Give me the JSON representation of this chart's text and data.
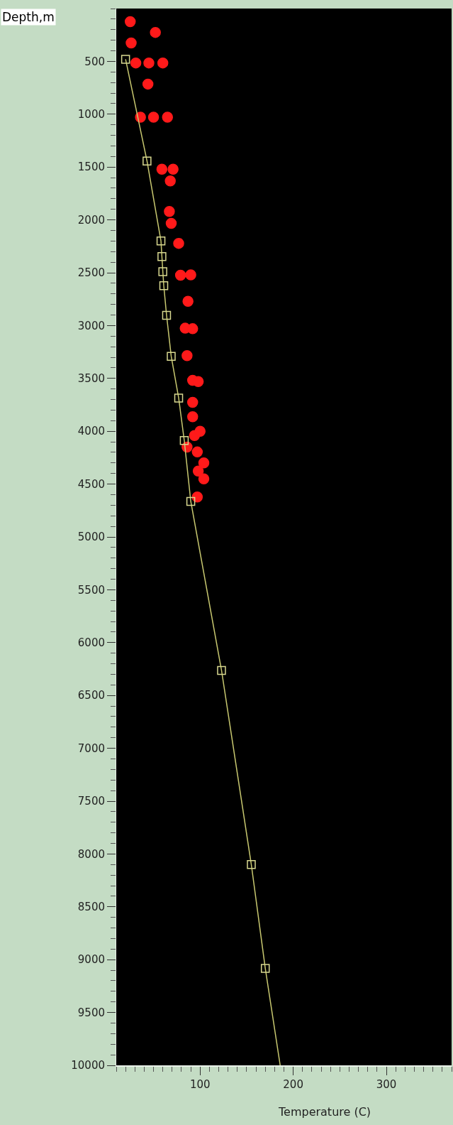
{
  "chart_data": {
    "type": "scatter",
    "xlabel": "Temperature (C)",
    "ylabel": "Depth,m",
    "xlim": [
      10,
      370
    ],
    "xticks": [
      100,
      200,
      300
    ],
    "ylim": [
      10000,
      0
    ],
    "yticks": [
      500,
      1000,
      1500,
      2000,
      2500,
      3000,
      3500,
      4000,
      4500,
      5000,
      5500,
      6000,
      6500,
      7000,
      7500,
      8000,
      8500,
      9000,
      9500,
      10000
    ],
    "grid": false,
    "series": [
      {
        "marker": "circle",
        "color": "#ff1a1a",
        "x": [
          25,
          52,
          26,
          31,
          45,
          60,
          44,
          36,
          50,
          65,
          59,
          71,
          68,
          67,
          69,
          77,
          79,
          90,
          87,
          84,
          92,
          86,
          92,
          98,
          92,
          92,
          94,
          100,
          97,
          86,
          98,
          104,
          104,
          97
        ],
        "values": [
          125,
          226,
          326,
          515,
          515,
          515,
          715,
          1028,
          1028,
          1028,
          1520,
          1520,
          1631,
          1920,
          2033,
          2222,
          2523,
          2520,
          2770,
          3025,
          3030,
          3284,
          3518,
          3530,
          3727,
          3862,
          4041,
          4000,
          4196,
          4150,
          4376,
          4300,
          4450,
          4622
        ]
      },
      {
        "type": "line",
        "marker": "none",
        "line_style": "solid",
        "color": "#c8c870",
        "x": [
          20,
          43,
          58,
          59,
          60,
          61,
          64,
          69,
          77,
          83,
          90,
          123,
          155,
          170,
          186
        ],
        "values": [
          480,
          1443,
          2200,
          2347,
          2490,
          2622,
          2903,
          3291,
          3686,
          4087,
          4664,
          6263,
          8100,
          9083,
          10000
        ]
      },
      {
        "marker": "square",
        "color": "#d8d890",
        "x": [
          20,
          43,
          58,
          59,
          60,
          61,
          64,
          69,
          77,
          83,
          90,
          123,
          155,
          170
        ],
        "values": [
          480,
          1443,
          2200,
          2347,
          2490,
          2622,
          2903,
          3291,
          3686,
          4087,
          4664,
          6263,
          8100,
          9083
        ]
      }
    ]
  }
}
